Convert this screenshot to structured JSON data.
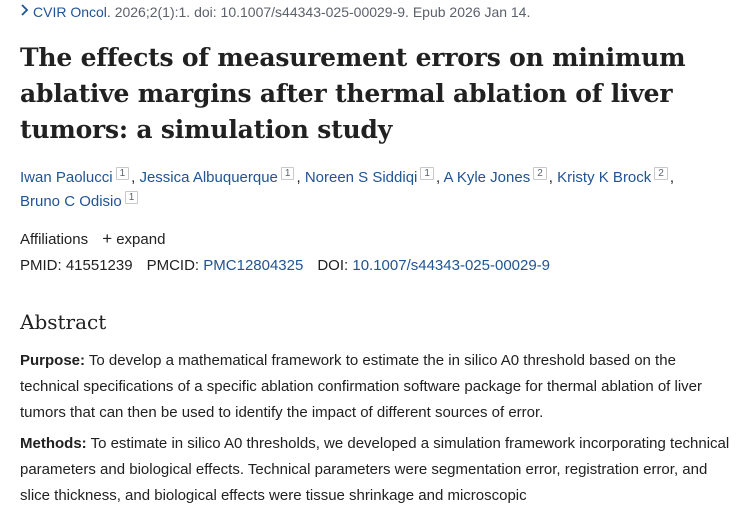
{
  "citation": {
    "journal": "CVIR Oncol.",
    "details": "2026;2(1):1. doi: 10.1007/s44343-025-00029-9. Epub 2026 Jan 14."
  },
  "title": "The effects of measurement errors on minimum ablative margins after thermal ablation of liver tumors: a simulation study",
  "authors": [
    {
      "name": "Iwan Paolucci",
      "aff": "1"
    },
    {
      "name": "Jessica Albuquerque",
      "aff": "1"
    },
    {
      "name": "Noreen S Siddiqi",
      "aff": "1"
    },
    {
      "name": "A Kyle Jones",
      "aff": "2"
    },
    {
      "name": "Kristy K Brock",
      "aff": "2"
    },
    {
      "name": "Bruno C Odisio",
      "aff": "1"
    }
  ],
  "affiliations": {
    "label": "Affiliations",
    "expand": "expand"
  },
  "identifiers": {
    "pmid_label": "PMID:",
    "pmid": "41551239",
    "pmcid_label": "PMCID:",
    "pmcid": "PMC12804325",
    "doi_label": "DOI:",
    "doi": "10.1007/s44343-025-00029-9"
  },
  "abstract": {
    "heading": "Abstract",
    "purpose_label": "Purpose:",
    "purpose_text": "To develop a mathematical framework to estimate the in silico A0 threshold based on the technical specifications of a specific ablation confirmation software package for thermal ablation of liver tumors that can then be used to identify the impact of different sources of error.",
    "methods_label": "Methods:",
    "methods_text": "To estimate in silico A0 thresholds, we developed a simulation framework incorporating technical parameters and biological effects. Technical parameters were segmentation error, registration error, and slice thickness, and biological effects were tissue shrinkage and microscopic"
  },
  "colors": {
    "link": "#205493",
    "text": "#212121",
    "muted": "#5b616b"
  }
}
